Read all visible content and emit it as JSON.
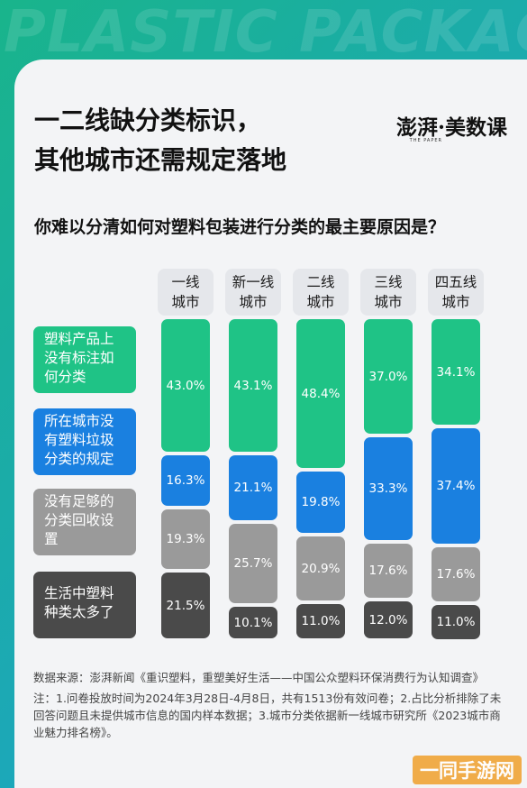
{
  "background_title": "PLASTIC PACKAGES",
  "headline": {
    "line1": "一二线缺分类标识，",
    "line2": "其他城市还需规定落地"
  },
  "brand": {
    "name": "澎湃·美数课",
    "sub": "THE PAPER"
  },
  "question": "你难以分清如何对塑料包装进行分类的最主要原因是？",
  "colors": {
    "green": "#1fc386",
    "blue": "#1a80e0",
    "gray": "#9a9a9a",
    "dark": "#4a4a4a",
    "accent_gradient_start": "#19b48b",
    "accent_gradient_end": "#1e9fd8"
  },
  "chart_data": {
    "type": "bar",
    "stacked": true,
    "categories": [
      {
        "line1": "一线",
        "line2": "城市"
      },
      {
        "line1": "新一线",
        "line2": "城市"
      },
      {
        "line1": "二线",
        "line2": "城市"
      },
      {
        "line1": "三线",
        "line2": "城市"
      },
      {
        "line1": "四五线",
        "line2": "城市"
      }
    ],
    "series": [
      {
        "name": "塑料产品上没有标注如何分类",
        "lines": [
          "塑料产品上",
          "没有标注如",
          "何分类"
        ],
        "color": "#1fc386",
        "values": [
          43.0,
          43.1,
          48.4,
          37.0,
          34.1
        ],
        "labels": [
          "43.0%",
          "43.1%",
          "48.4%",
          "37.0%",
          "34.1%"
        ]
      },
      {
        "name": "所在城市没有塑料垃圾分类的规定",
        "lines": [
          "所在城市没",
          "有塑料垃圾",
          "分类的规定"
        ],
        "color": "#1a80e0",
        "values": [
          16.3,
          21.1,
          19.8,
          33.3,
          37.4
        ],
        "labels": [
          "16.3%",
          "21.1%",
          "19.8%",
          "33.3%",
          "37.4%"
        ]
      },
      {
        "name": "没有足够的分类回收设置",
        "lines": [
          "没有足够的",
          "分类回收设",
          "置"
        ],
        "color": "#9a9a9a",
        "values": [
          19.3,
          25.7,
          20.9,
          17.6,
          17.6
        ],
        "labels": [
          "19.3%",
          "25.7%",
          "20.9%",
          "17.6%",
          "17.6%"
        ]
      },
      {
        "name": "生活中塑料种类太多了",
        "lines": [
          "生活中塑料",
          "种类太多了"
        ],
        "color": "#4a4a4a",
        "values": [
          21.5,
          10.1,
          11.0,
          12.0,
          11.0
        ],
        "labels": [
          "21.5%",
          "10.1%",
          "11.0%",
          "12.0%",
          "11.0%"
        ]
      }
    ],
    "unit": "%"
  },
  "notes": {
    "source": "数据来源：澎湃新闻《重识塑料，重塑美好生活——中国公众塑料环保消费行为认知调查》",
    "note": "注：1.问卷投放时间为2024年3月28日-4月8日，共有1513份有效问卷；2.占比分析排除了未回答问题且未提供城市信息的国内样本数据；3.城市分类依据新一线城市研究所《2023城市商业魅力排名榜》。"
  },
  "watermark": "一同手游网"
}
